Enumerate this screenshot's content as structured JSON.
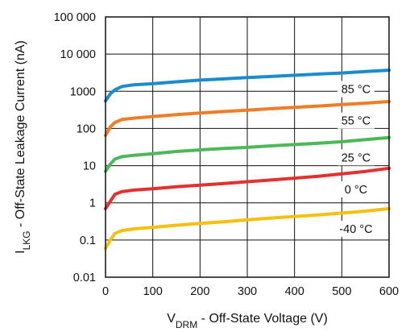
{
  "chart_data": {
    "type": "line",
    "xlabel": {
      "main": "V",
      "sub": "DRM",
      "rest": " - Off-State Voltage (V)"
    },
    "ylabel": {
      "main": "I",
      "sub": "LKG",
      "rest": " - Off-State Leakage Current (nA)"
    },
    "x_ticks": [
      {
        "value": 0,
        "label": "0"
      },
      {
        "value": 100,
        "label": "100"
      },
      {
        "value": 200,
        "label": "200"
      },
      {
        "value": 300,
        "label": "300"
      },
      {
        "value": 400,
        "label": "400"
      },
      {
        "value": 500,
        "label": "500"
      },
      {
        "value": 600,
        "label": "600"
      }
    ],
    "y_ticks": [
      {
        "value": 0.01,
        "label": "0.01"
      },
      {
        "value": 0.1,
        "label": "0.1"
      },
      {
        "value": 1,
        "label": "1"
      },
      {
        "value": 10,
        "label": "10"
      },
      {
        "value": 100,
        "label": "100"
      },
      {
        "value": 1000,
        "label": "1000"
      },
      {
        "value": 10000,
        "label": "10 000"
      },
      {
        "value": 100000,
        "label": "100 000"
      }
    ],
    "xlim": [
      0,
      600
    ],
    "ylim": [
      0.01,
      100000
    ],
    "yscale": "log",
    "grid": true,
    "series": [
      {
        "name": "85 °C",
        "color": "#1a8cce",
        "x": [
          0,
          10,
          20,
          35,
          60,
          100,
          150,
          200,
          250,
          300,
          350,
          400,
          450,
          500,
          550,
          600
        ],
        "y": [
          550,
          850,
          1100,
          1350,
          1500,
          1600,
          1800,
          2000,
          2150,
          2350,
          2500,
          2700,
          2900,
          3100,
          3400,
          3700
        ]
      },
      {
        "name": "55 °C",
        "color": "#ef7d28",
        "x": [
          0,
          10,
          20,
          35,
          60,
          100,
          150,
          200,
          250,
          300,
          350,
          400,
          450,
          500,
          550,
          600
        ],
        "y": [
          65,
          110,
          145,
          175,
          190,
          210,
          235,
          260,
          285,
          310,
          340,
          370,
          400,
          440,
          480,
          530
        ]
      },
      {
        "name": "25 °C",
        "color": "#4cb85a",
        "x": [
          0,
          10,
          20,
          35,
          60,
          100,
          150,
          200,
          250,
          300,
          350,
          400,
          450,
          500,
          550,
          600
        ],
        "y": [
          7,
          11,
          15,
          17.5,
          19,
          21,
          24,
          26.5,
          29,
          31,
          34,
          37,
          40,
          44,
          50,
          57
        ]
      },
      {
        "name": "0 °C",
        "color": "#e3312e",
        "x": [
          0,
          10,
          20,
          35,
          60,
          100,
          150,
          200,
          250,
          300,
          350,
          400,
          450,
          500,
          550,
          600
        ],
        "y": [
          0.7,
          1.1,
          1.7,
          2.0,
          2.2,
          2.4,
          2.7,
          3.0,
          3.3,
          3.7,
          4.1,
          4.6,
          5.2,
          6.0,
          7.0,
          8.5
        ]
      },
      {
        "name": "-40 °C",
        "color": "#f5c00f",
        "x": [
          0,
          10,
          20,
          35,
          60,
          100,
          150,
          200,
          250,
          300,
          350,
          400,
          450,
          500,
          550,
          600
        ],
        "y": [
          0.06,
          0.1,
          0.15,
          0.18,
          0.2,
          0.22,
          0.25,
          0.28,
          0.31,
          0.35,
          0.39,
          0.43,
          0.47,
          0.53,
          0.6,
          0.7
        ]
      }
    ],
    "labels_x": [
      {
        "text": "85 °C",
        "series": 0
      },
      {
        "text": "55 °C",
        "series": 1
      },
      {
        "text": "25 °C",
        "series": 2
      },
      {
        "text": "0 °C",
        "series": 3
      },
      {
        "text": "-40 °C",
        "series": 4
      }
    ]
  }
}
